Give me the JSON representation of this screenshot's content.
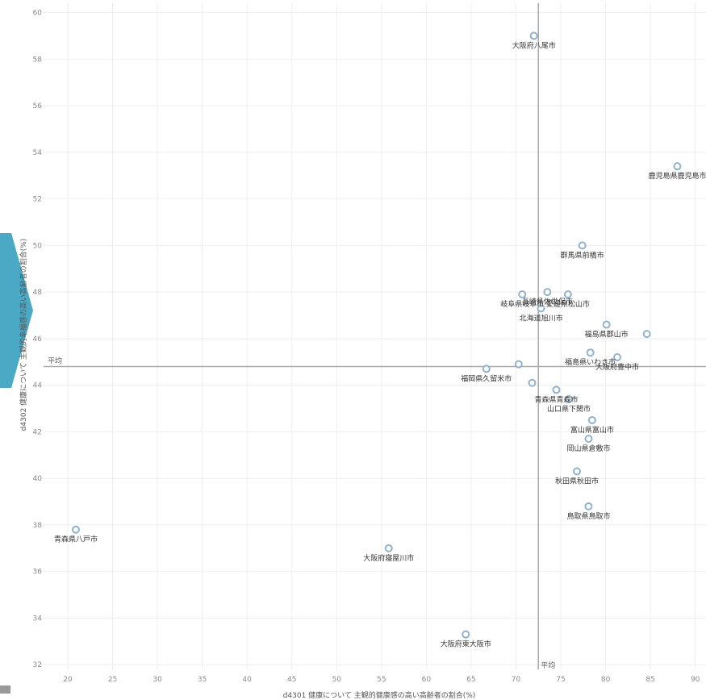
{
  "chart_data": {
    "type": "scatter",
    "xlabel": "d4301 健康について 主観的健康感の高い高齢者の割合(%)",
    "ylabel": "d4302 健康について 主観的幸福感の高い高齢者の割合(%)",
    "xlim": [
      17.3,
      91.2
    ],
    "ylim": [
      31.8,
      60.4
    ],
    "xticks": [
      20,
      25,
      30,
      35,
      40,
      45,
      50,
      55,
      60,
      65,
      70,
      75,
      80,
      85,
      90
    ],
    "yticks": [
      32,
      34,
      36,
      38,
      40,
      42,
      44,
      46,
      48,
      50,
      52,
      54,
      56,
      58,
      60
    ],
    "grid": true,
    "reference_lines": {
      "x_average": 72.5,
      "y_average": 44.8,
      "x_average_label": "平均",
      "y_average_label": "平均"
    },
    "points": [
      {
        "x": 72.0,
        "y": 59.0,
        "label": "大阪府八尾市"
      },
      {
        "x": 88.0,
        "y": 53.4,
        "label": "鹿児島県鹿児島市"
      },
      {
        "x": 77.4,
        "y": 50.0,
        "label": "群馬県前橋市"
      },
      {
        "x": 73.5,
        "y": 48.0,
        "label": "長崎県佐世保市"
      },
      {
        "x": 75.8,
        "y": 47.9,
        "label": "愛媛県松山市"
      },
      {
        "x": 70.7,
        "y": 47.9,
        "label": "岐阜県岐阜市"
      },
      {
        "x": 72.8,
        "y": 47.3,
        "label": "北海道旭川市"
      },
      {
        "x": 80.1,
        "y": 46.6,
        "label": "福島県郡山市"
      },
      {
        "x": 84.6,
        "y": 46.2,
        "label": ""
      },
      {
        "x": 78.3,
        "y": 45.4,
        "label": "福島県いわき市"
      },
      {
        "x": 81.3,
        "y": 45.2,
        "label": "大阪府豊中市"
      },
      {
        "x": 70.3,
        "y": 44.9,
        "label": ""
      },
      {
        "x": 66.7,
        "y": 44.7,
        "label": "福岡県久留米市"
      },
      {
        "x": 71.8,
        "y": 44.1,
        "label": ""
      },
      {
        "x": 74.5,
        "y": 43.8,
        "label": "青森県青森市"
      },
      {
        "x": 75.9,
        "y": 43.4,
        "label": "山口県下関市"
      },
      {
        "x": 78.5,
        "y": 42.5,
        "label": "富山県富山市"
      },
      {
        "x": 78.1,
        "y": 41.7,
        "label": "岡山県倉敷市"
      },
      {
        "x": 76.8,
        "y": 40.3,
        "label": "秋田県秋田市"
      },
      {
        "x": 78.1,
        "y": 38.8,
        "label": "鳥取県鳥取市"
      },
      {
        "x": 20.9,
        "y": 37.8,
        "label": "青森県八戸市"
      },
      {
        "x": 55.8,
        "y": 37.0,
        "label": "大阪府寝屋川市"
      },
      {
        "x": 64.4,
        "y": 33.3,
        "label": "大阪府東大阪市"
      }
    ],
    "colors": {
      "point_stroke": "#8fb3cf",
      "avg_line": "#aaaaaa"
    }
  }
}
